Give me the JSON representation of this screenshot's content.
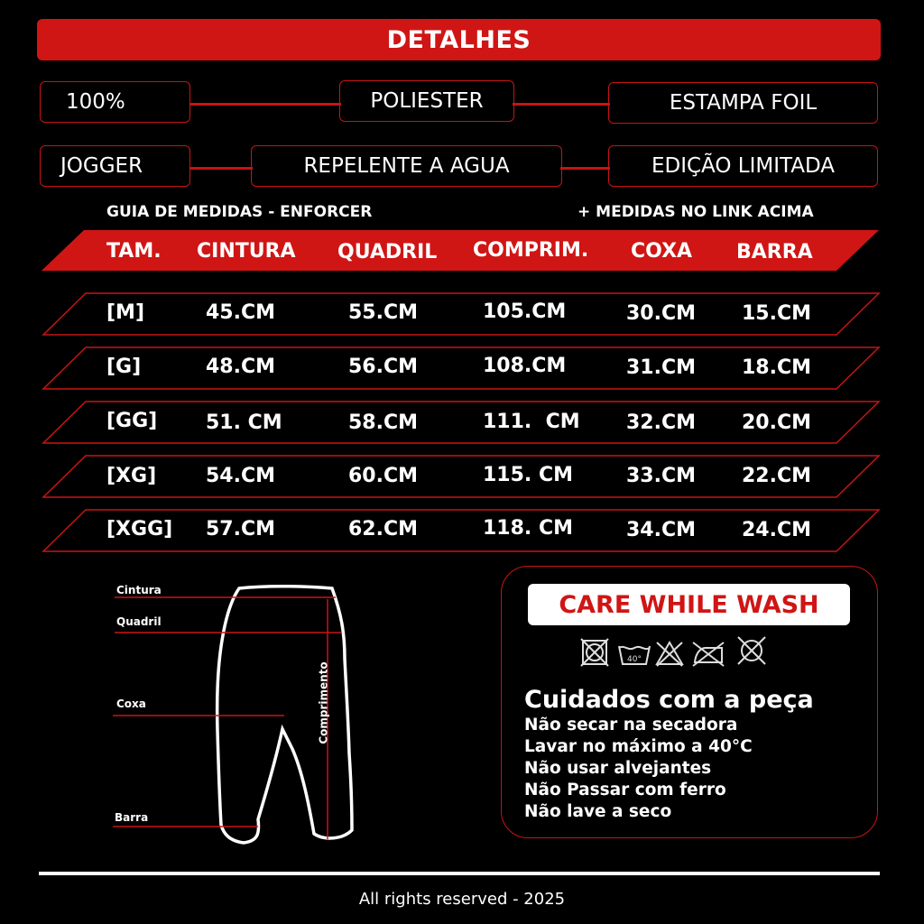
{
  "header": {
    "title": "DETALHES"
  },
  "details": {
    "row1": [
      "100%",
      "POLIESTER",
      "ESTAMPA FOIL"
    ],
    "row2": [
      "JOGGER",
      "REPELENTE A AGUA",
      "EDIÇÃO LIMITADA"
    ]
  },
  "guide": {
    "left": "GUIA DE MEDIDAS - ENFORCER",
    "right": "+ MEDIDAS NO LINK ACIMA"
  },
  "table": {
    "headers": [
      "TAM.",
      "CINTURA",
      "QUADRIL",
      "COMPRIM.",
      "COXA",
      "BARRA"
    ],
    "rows": [
      [
        "[M]",
        "45.CM",
        "55.CM",
        "105.CM",
        "30.CM",
        "15.CM"
      ],
      [
        "[G]",
        "48.CM",
        "56.CM",
        "108.CM",
        "31.CM",
        "18.CM"
      ],
      [
        "[GG]",
        "51. CM",
        "58.CM",
        "111.  CM",
        "32.CM",
        "20.CM"
      ],
      [
        "[XG]",
        "54.CM",
        "60.CM",
        "115. CM",
        "33.CM",
        "22.CM"
      ],
      [
        "[XGG]",
        "57.CM",
        "62.CM",
        "118. CM",
        "34.CM",
        "24.CM"
      ]
    ]
  },
  "diagram": {
    "labels": {
      "cintura": "Cintura",
      "quadril": "Quadril",
      "coxa": "Coxa",
      "barra": "Barra",
      "comprimento": "Comprimento"
    }
  },
  "care": {
    "title": "CARE WHILE WASH",
    "icons": [
      "no-tumble-dry-icon",
      "wash-40-icon",
      "no-bleach-icon",
      "no-iron-icon",
      "no-dry-clean-icon"
    ],
    "wash_temp": "40°",
    "heading": "Cuidados com a peça",
    "lines": [
      "Não secar na secadora",
      "Lavar no máximo a 40°C",
      "Não usar alvejantes",
      "Não Passar com ferro",
      "Não lave a seco"
    ]
  },
  "colors": {
    "accent": "#d01515",
    "background": "#000000",
    "text": "#ffffff"
  },
  "footer": {
    "text": "All rights reserved - 2025"
  }
}
